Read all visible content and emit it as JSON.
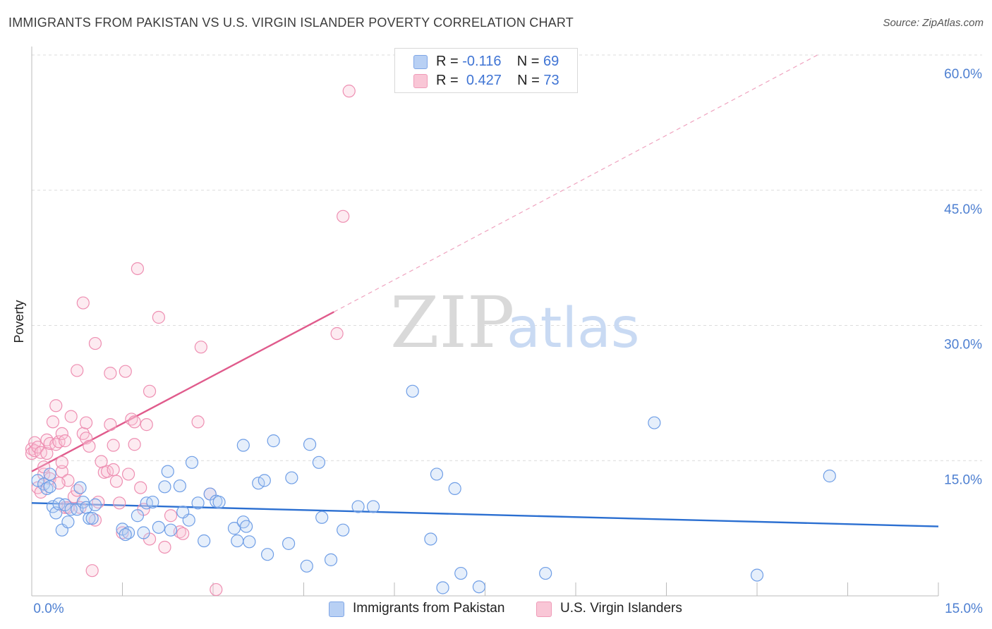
{
  "title": "IMMIGRANTS FROM PAKISTAN VS U.S. VIRGIN ISLANDER POVERTY CORRELATION CHART",
  "source": "Source: ZipAtlas.com",
  "watermark": {
    "zip": "ZIP",
    "atlas": "atlas"
  },
  "legend": {
    "r_label": "R =",
    "n_label": "N =",
    "rows": [
      {
        "r": "-0.116",
        "n": "69",
        "color": "#b8d0f4",
        "border": "#7fa6e6"
      },
      {
        "r": "0.427",
        "n": "73",
        "color": "#f9c6d6",
        "border": "#ef9bb8"
      }
    ]
  },
  "bottom_legend": [
    {
      "label": "Immigrants from Pakistan",
      "color": "#b8d0f4",
      "border": "#7fa6e6"
    },
    {
      "label": "U.S. Virgin Islanders",
      "color": "#f9c6d6",
      "border": "#ef9bb8"
    }
  ],
  "chart_data": {
    "type": "scatter",
    "title": "IMMIGRANTS FROM PAKISTAN VS U.S. VIRGIN ISLANDER POVERTY CORRELATION CHART",
    "xlabel": "",
    "ylabel": "Poverty",
    "xlim": [
      0,
      15
    ],
    "ylim": [
      0,
      60
    ],
    "x_ticks": [
      "0.0%",
      "15.0%"
    ],
    "y_ticks": [
      "15.0%",
      "30.0%",
      "45.0%",
      "60.0%"
    ],
    "y_tick_values": [
      15,
      30,
      45,
      60
    ],
    "grid": "horizontal dashed",
    "legend_position": "top-center",
    "series": [
      {
        "name": "Immigrants from Pakistan",
        "color": "#6f9ee6",
        "trend_color": "#2b6fd1",
        "trend": {
          "x": [
            0,
            15
          ],
          "y": [
            10.3,
            7.7
          ]
        },
        "points": [
          [
            0.1,
            12.8
          ],
          [
            0.2,
            12.4
          ],
          [
            0.25,
            11.9
          ],
          [
            0.3,
            12.1
          ],
          [
            0.3,
            13.5
          ],
          [
            0.35,
            9.9
          ],
          [
            0.4,
            9.2
          ],
          [
            0.45,
            10.2
          ],
          [
            0.5,
            7.3
          ],
          [
            0.55,
            10.1
          ],
          [
            0.6,
            8.2
          ],
          [
            0.65,
            9.6
          ],
          [
            0.75,
            9.6
          ],
          [
            0.8,
            12.0
          ],
          [
            0.85,
            10.4
          ],
          [
            0.9,
            9.8
          ],
          [
            0.95,
            8.6
          ],
          [
            1.0,
            8.6
          ],
          [
            1.05,
            10.1
          ],
          [
            1.5,
            7.4
          ],
          [
            1.6,
            7.0
          ],
          [
            1.55,
            6.8
          ],
          [
            1.75,
            8.9
          ],
          [
            1.85,
            7.0
          ],
          [
            1.9,
            10.3
          ],
          [
            2.0,
            10.4
          ],
          [
            2.1,
            7.6
          ],
          [
            2.2,
            12.1
          ],
          [
            2.25,
            13.8
          ],
          [
            2.3,
            7.3
          ],
          [
            2.45,
            12.2
          ],
          [
            2.6,
            8.4
          ],
          [
            2.5,
            9.3
          ],
          [
            2.65,
            14.8
          ],
          [
            2.75,
            10.3
          ],
          [
            2.85,
            6.1
          ],
          [
            2.95,
            11.3
          ],
          [
            3.05,
            10.5
          ],
          [
            3.1,
            10.4
          ],
          [
            3.35,
            7.5
          ],
          [
            3.4,
            6.1
          ],
          [
            3.5,
            8.2
          ],
          [
            3.55,
            7.7
          ],
          [
            3.5,
            16.7
          ],
          [
            3.6,
            6.0
          ],
          [
            3.75,
            12.5
          ],
          [
            3.85,
            12.8
          ],
          [
            3.9,
            4.6
          ],
          [
            4.0,
            17.2
          ],
          [
            4.25,
            5.8
          ],
          [
            4.3,
            13.1
          ],
          [
            4.55,
            3.3
          ],
          [
            4.6,
            16.8
          ],
          [
            4.75,
            14.8
          ],
          [
            4.8,
            8.7
          ],
          [
            4.95,
            4.0
          ],
          [
            5.15,
            7.3
          ],
          [
            5.4,
            9.9
          ],
          [
            5.65,
            9.9
          ],
          [
            6.3,
            22.7
          ],
          [
            6.6,
            6.3
          ],
          [
            6.7,
            13.5
          ],
          [
            6.8,
            0.9
          ],
          [
            7.0,
            11.9
          ],
          [
            7.1,
            2.5
          ],
          [
            7.4,
            1.0
          ],
          [
            8.5,
            2.5
          ],
          [
            10.3,
            19.2
          ],
          [
            12.0,
            2.3
          ],
          [
            13.2,
            13.3
          ]
        ]
      },
      {
        "name": "U.S. Virgin Islanders",
        "color": "#f08db0",
        "trend_color": "#e05b8c",
        "trend": {
          "x": [
            0,
            5.0
          ],
          "y": [
            13.8,
            31.5
          ]
        },
        "trend_extension": {
          "x": [
            5.0,
            13.0
          ],
          "y": [
            31.5,
            60.0
          ]
        },
        "points": [
          [
            0.0,
            16.3
          ],
          [
            0.0,
            15.8
          ],
          [
            0.05,
            17.0
          ],
          [
            0.05,
            16.1
          ],
          [
            0.1,
            16.5
          ],
          [
            0.1,
            12.0
          ],
          [
            0.15,
            15.9
          ],
          [
            0.15,
            11.5
          ],
          [
            0.2,
            13.5
          ],
          [
            0.2,
            14.3
          ],
          [
            0.25,
            15.8
          ],
          [
            0.25,
            17.3
          ],
          [
            0.3,
            13.0
          ],
          [
            0.3,
            16.9
          ],
          [
            0.35,
            19.3
          ],
          [
            0.4,
            16.8
          ],
          [
            0.4,
            21.1
          ],
          [
            0.45,
            17.1
          ],
          [
            0.5,
            13.8
          ],
          [
            0.5,
            14.8
          ],
          [
            0.5,
            18.0
          ],
          [
            0.55,
            17.2
          ],
          [
            0.55,
            9.8
          ],
          [
            0.6,
            9.8
          ],
          [
            0.6,
            12.8
          ],
          [
            0.65,
            19.9
          ],
          [
            0.7,
            11.0
          ],
          [
            0.75,
            25.0
          ],
          [
            0.75,
            11.7
          ],
          [
            0.8,
            9.8
          ],
          [
            0.85,
            18.0
          ],
          [
            0.9,
            17.5
          ],
          [
            0.9,
            19.2
          ],
          [
            0.95,
            16.6
          ],
          [
            1.0,
            2.8
          ],
          [
            1.05,
            28.0
          ],
          [
            1.05,
            8.4
          ],
          [
            1.1,
            10.4
          ],
          [
            1.2,
            13.7
          ],
          [
            1.25,
            13.8
          ],
          [
            1.3,
            19.0
          ],
          [
            1.3,
            24.7
          ],
          [
            1.35,
            16.7
          ],
          [
            1.35,
            14.0
          ],
          [
            1.4,
            12.7
          ],
          [
            1.5,
            7.0
          ],
          [
            1.55,
            24.9
          ],
          [
            1.6,
            13.5
          ],
          [
            1.65,
            19.6
          ],
          [
            1.7,
            16.8
          ],
          [
            1.7,
            19.3
          ],
          [
            1.75,
            36.3
          ],
          [
            1.8,
            12.0
          ],
          [
            1.85,
            9.6
          ],
          [
            1.9,
            19.0
          ],
          [
            1.95,
            6.3
          ],
          [
            1.95,
            22.7
          ],
          [
            2.1,
            30.9
          ],
          [
            2.2,
            5.4
          ],
          [
            2.3,
            8.9
          ],
          [
            2.45,
            7.1
          ],
          [
            2.5,
            6.9
          ],
          [
            2.75,
            19.3
          ],
          [
            2.8,
            27.6
          ],
          [
            2.95,
            11.3
          ],
          [
            3.05,
            0.7
          ],
          [
            0.85,
            32.5
          ],
          [
            5.05,
            29.1
          ],
          [
            5.15,
            42.1
          ],
          [
            5.25,
            56.0
          ],
          [
            0.45,
            12.5
          ],
          [
            1.15,
            14.9
          ],
          [
            1.45,
            10.3
          ]
        ]
      }
    ]
  }
}
